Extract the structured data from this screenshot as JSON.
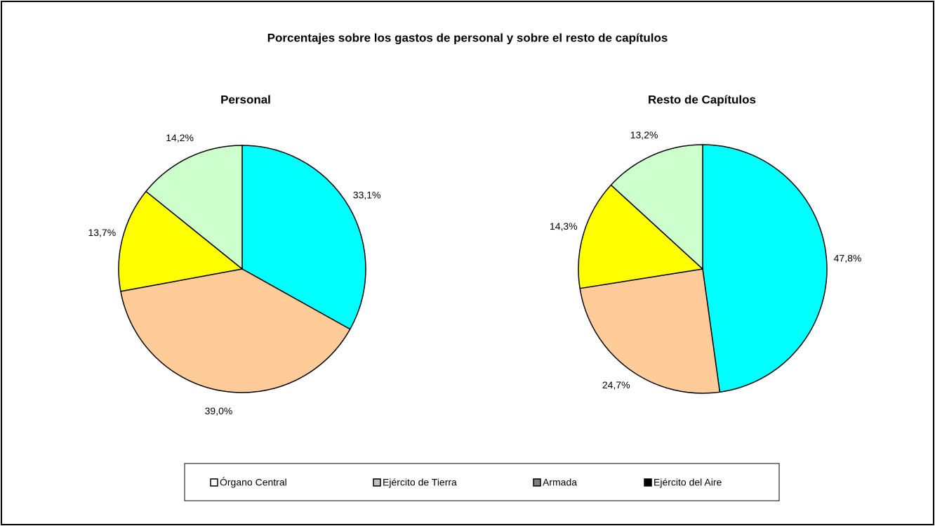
{
  "title": "Porcentajes sobre los gastos de personal y sobre el resto de capítulos",
  "legend": {
    "colors": [
      "#ffffff",
      "#c0c0c0",
      "#808080",
      "#000000"
    ]
  },
  "chart_data": [
    {
      "type": "pie",
      "title": "Personal",
      "categories": [
        "Órgano Central",
        "Ejército de Tierra",
        "Armada",
        "Ejército del Aire"
      ],
      "values": [
        33.1,
        39.0,
        13.7,
        14.2
      ],
      "value_labels": [
        "33,1%",
        "39,0%",
        "13,7%",
        "14,2%"
      ],
      "colors": [
        "#00ffff",
        "#ffcc99",
        "#ffff00",
        "#ccffcc"
      ]
    },
    {
      "type": "pie",
      "title": "Resto de Capítulos",
      "categories": [
        "Órgano Central",
        "Ejército de Tierra",
        "Armada",
        "Ejército del Aire"
      ],
      "values": [
        47.8,
        24.7,
        14.3,
        13.2
      ],
      "value_labels": [
        "47,8%",
        "24,7%",
        "14,3%",
        "13,2%"
      ],
      "colors": [
        "#00ffff",
        "#ffcc99",
        "#ffff00",
        "#ccffcc"
      ]
    }
  ]
}
